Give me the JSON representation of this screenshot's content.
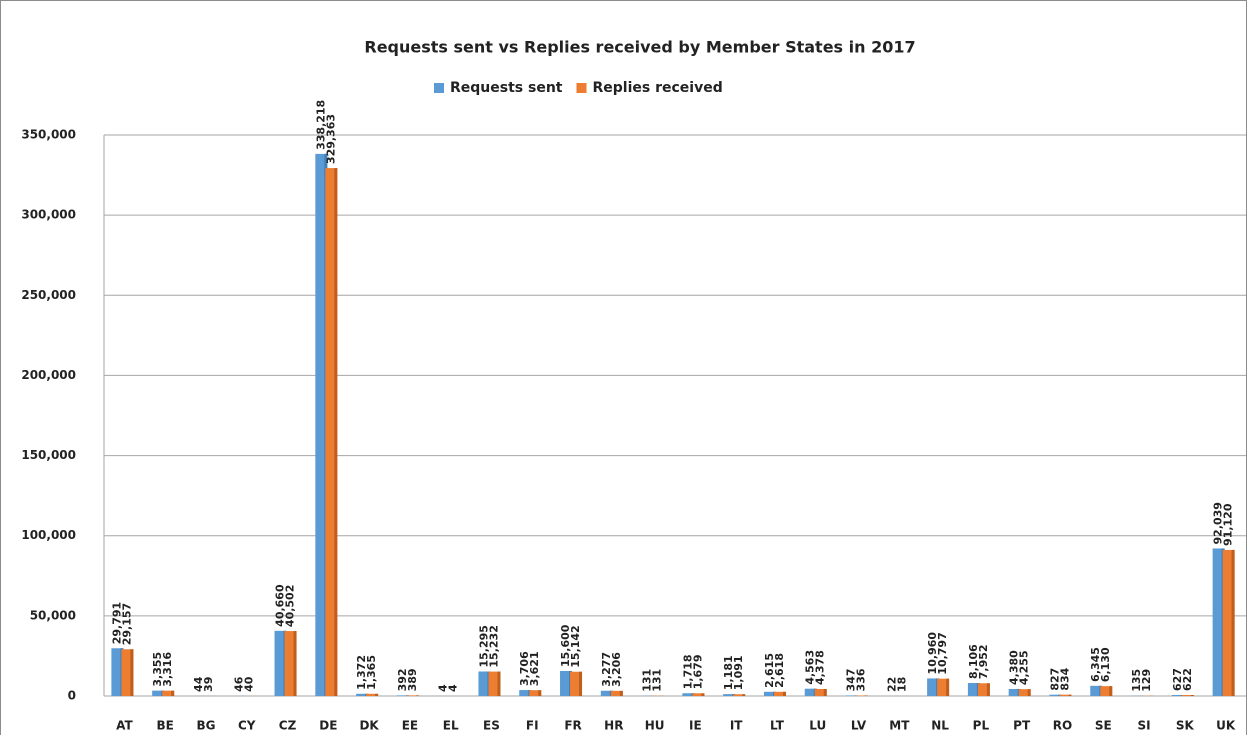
{
  "chart_data": {
    "type": "bar",
    "title": "Requests sent vs Replies received by Member States in 2017",
    "categories": [
      "AT",
      "BE",
      "BG",
      "CY",
      "CZ",
      "DE",
      "DK",
      "EE",
      "EL",
      "ES",
      "FI",
      "FR",
      "HR",
      "HU",
      "IE",
      "IT",
      "LT",
      "LU",
      "LV",
      "MT",
      "NL",
      "PL",
      "PT",
      "RO",
      "SE",
      "SI",
      "SK",
      "UK"
    ],
    "series": [
      {
        "name": "Requests sent",
        "color": "#5b9bd5",
        "values": [
          29791,
          3355,
          44,
          46,
          40660,
          338218,
          1372,
          392,
          4,
          15295,
          3706,
          15600,
          3277,
          131,
          1718,
          1181,
          2615,
          4563,
          347,
          22,
          10960,
          8106,
          4380,
          827,
          6345,
          135,
          627,
          92039
        ],
        "value_labels": [
          "29,791",
          "3,355",
          "44",
          "46",
          "40,660",
          "338,218",
          "1,372",
          "392",
          "4",
          "15,295",
          "3,706",
          "15,600",
          "3,277",
          "131",
          "1,718",
          "1,181",
          "2,615",
          "4,563",
          "347",
          "22",
          "10,960",
          "8,106",
          "4,380",
          "827",
          "6,345",
          "135",
          "627",
          "92,039"
        ]
      },
      {
        "name": "Replies received",
        "color": "#ed7d31",
        "values": [
          29157,
          3316,
          39,
          40,
          40502,
          329363,
          1365,
          389,
          4,
          15232,
          3621,
          15142,
          3206,
          131,
          1679,
          1091,
          2618,
          4378,
          336,
          18,
          10797,
          7952,
          4255,
          834,
          6130,
          129,
          622,
          91120
        ],
        "value_labels": [
          "29,157",
          "3,316",
          "39",
          "40",
          "40,502",
          "329,363",
          "1,365",
          "389",
          "4",
          "15,232",
          "3,621",
          "15,142",
          "3,206",
          "131",
          "1,679",
          "1,091",
          "2,618",
          "4,378",
          "336",
          "18",
          "10,797",
          "7,952",
          "4,255",
          "834",
          "6,130",
          "129",
          "622",
          "91,120"
        ]
      }
    ],
    "ylim": [
      0,
      350000
    ],
    "yticks": [
      0,
      {
        "value": 50000,
        "label": "50,000"
      },
      {
        "value": 100000,
        "label": "100,000"
      },
      {
        "value": 150000,
        "label": "150,000"
      },
      {
        "value": 200000,
        "label": "200,000"
      },
      {
        "value": 250000,
        "label": "250,000"
      },
      {
        "value": 300000,
        "label": "300,000"
      },
      {
        "value": 350000,
        "label": "350,000"
      }
    ],
    "grid": true,
    "legend": "top"
  }
}
